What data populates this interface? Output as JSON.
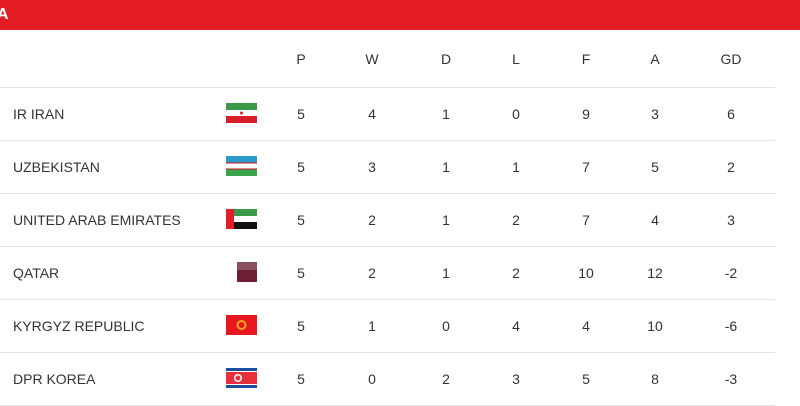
{
  "group_title": "A",
  "columns": [
    "P",
    "W",
    "D",
    "L",
    "F",
    "A",
    "GD"
  ],
  "rows": [
    {
      "team": "IR IRAN",
      "flag": "iran-flag",
      "stats": [
        "5",
        "4",
        "1",
        "0",
        "9",
        "3",
        "6"
      ]
    },
    {
      "team": "UZBEKISTAN",
      "flag": "uzbekistan-flag",
      "stats": [
        "5",
        "3",
        "1",
        "1",
        "7",
        "5",
        "2"
      ]
    },
    {
      "team": "UNITED ARAB EMIRATES",
      "flag": "uae-flag",
      "stats": [
        "5",
        "2",
        "1",
        "2",
        "7",
        "4",
        "3"
      ]
    },
    {
      "team": "QATAR",
      "flag": "qatar-flag",
      "stats": [
        "5",
        "2",
        "1",
        "2",
        "10",
        "12",
        "-2"
      ]
    },
    {
      "team": "KYRGYZ REPUBLIC",
      "flag": "kyrgyz-flag",
      "stats": [
        "5",
        "1",
        "0",
        "4",
        "4",
        "10",
        "-6"
      ]
    },
    {
      "team": "DPR KOREA",
      "flag": "dpr-korea-flag",
      "stats": [
        "5",
        "0",
        "2",
        "3",
        "5",
        "8",
        "-3"
      ]
    }
  ],
  "colors": {
    "accent": "#e31b23"
  }
}
